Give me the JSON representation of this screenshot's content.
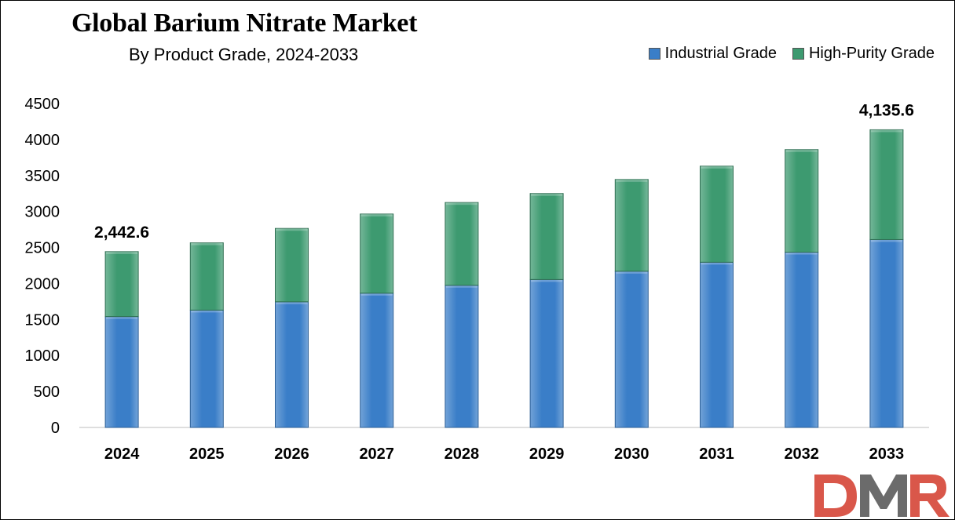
{
  "chart_data": {
    "type": "bar",
    "stacked": true,
    "title": "Global Barium Nitrate Market",
    "subtitle": "By Product Grade, 2024-2033",
    "categories": [
      "2024",
      "2025",
      "2026",
      "2027",
      "2028",
      "2029",
      "2030",
      "2031",
      "2032",
      "2033"
    ],
    "series": [
      {
        "name": "Industrial Grade",
        "color": "#3a7ec8",
        "values": [
          1540,
          1630,
          1745,
          1865,
          1975,
          2055,
          2170,
          2295,
          2435,
          2610
        ]
      },
      {
        "name": "High-Purity Grade",
        "color": "#3d9a70",
        "values": [
          902.6,
          935,
          1020,
          1100,
          1150,
          1195,
          1275,
          1335,
          1425,
          1525.6
        ]
      }
    ],
    "totals_labels": [
      {
        "category": "2024",
        "text": "2,442.6"
      },
      {
        "category": "2033",
        "text": "4,135.6"
      }
    ],
    "yticks": [
      "0",
      "500",
      "1000",
      "1500",
      "2000",
      "2500",
      "3000",
      "3500",
      "4000",
      "4500"
    ],
    "ylim": [
      0,
      4500
    ],
    "xlabel": "",
    "ylabel": "",
    "grid": false,
    "legend_position": "top-right"
  },
  "logo": {
    "text": "DMR",
    "colors": {
      "d": "#d9574a",
      "m": "#6b6b6b",
      "r": "#d9574a"
    }
  }
}
